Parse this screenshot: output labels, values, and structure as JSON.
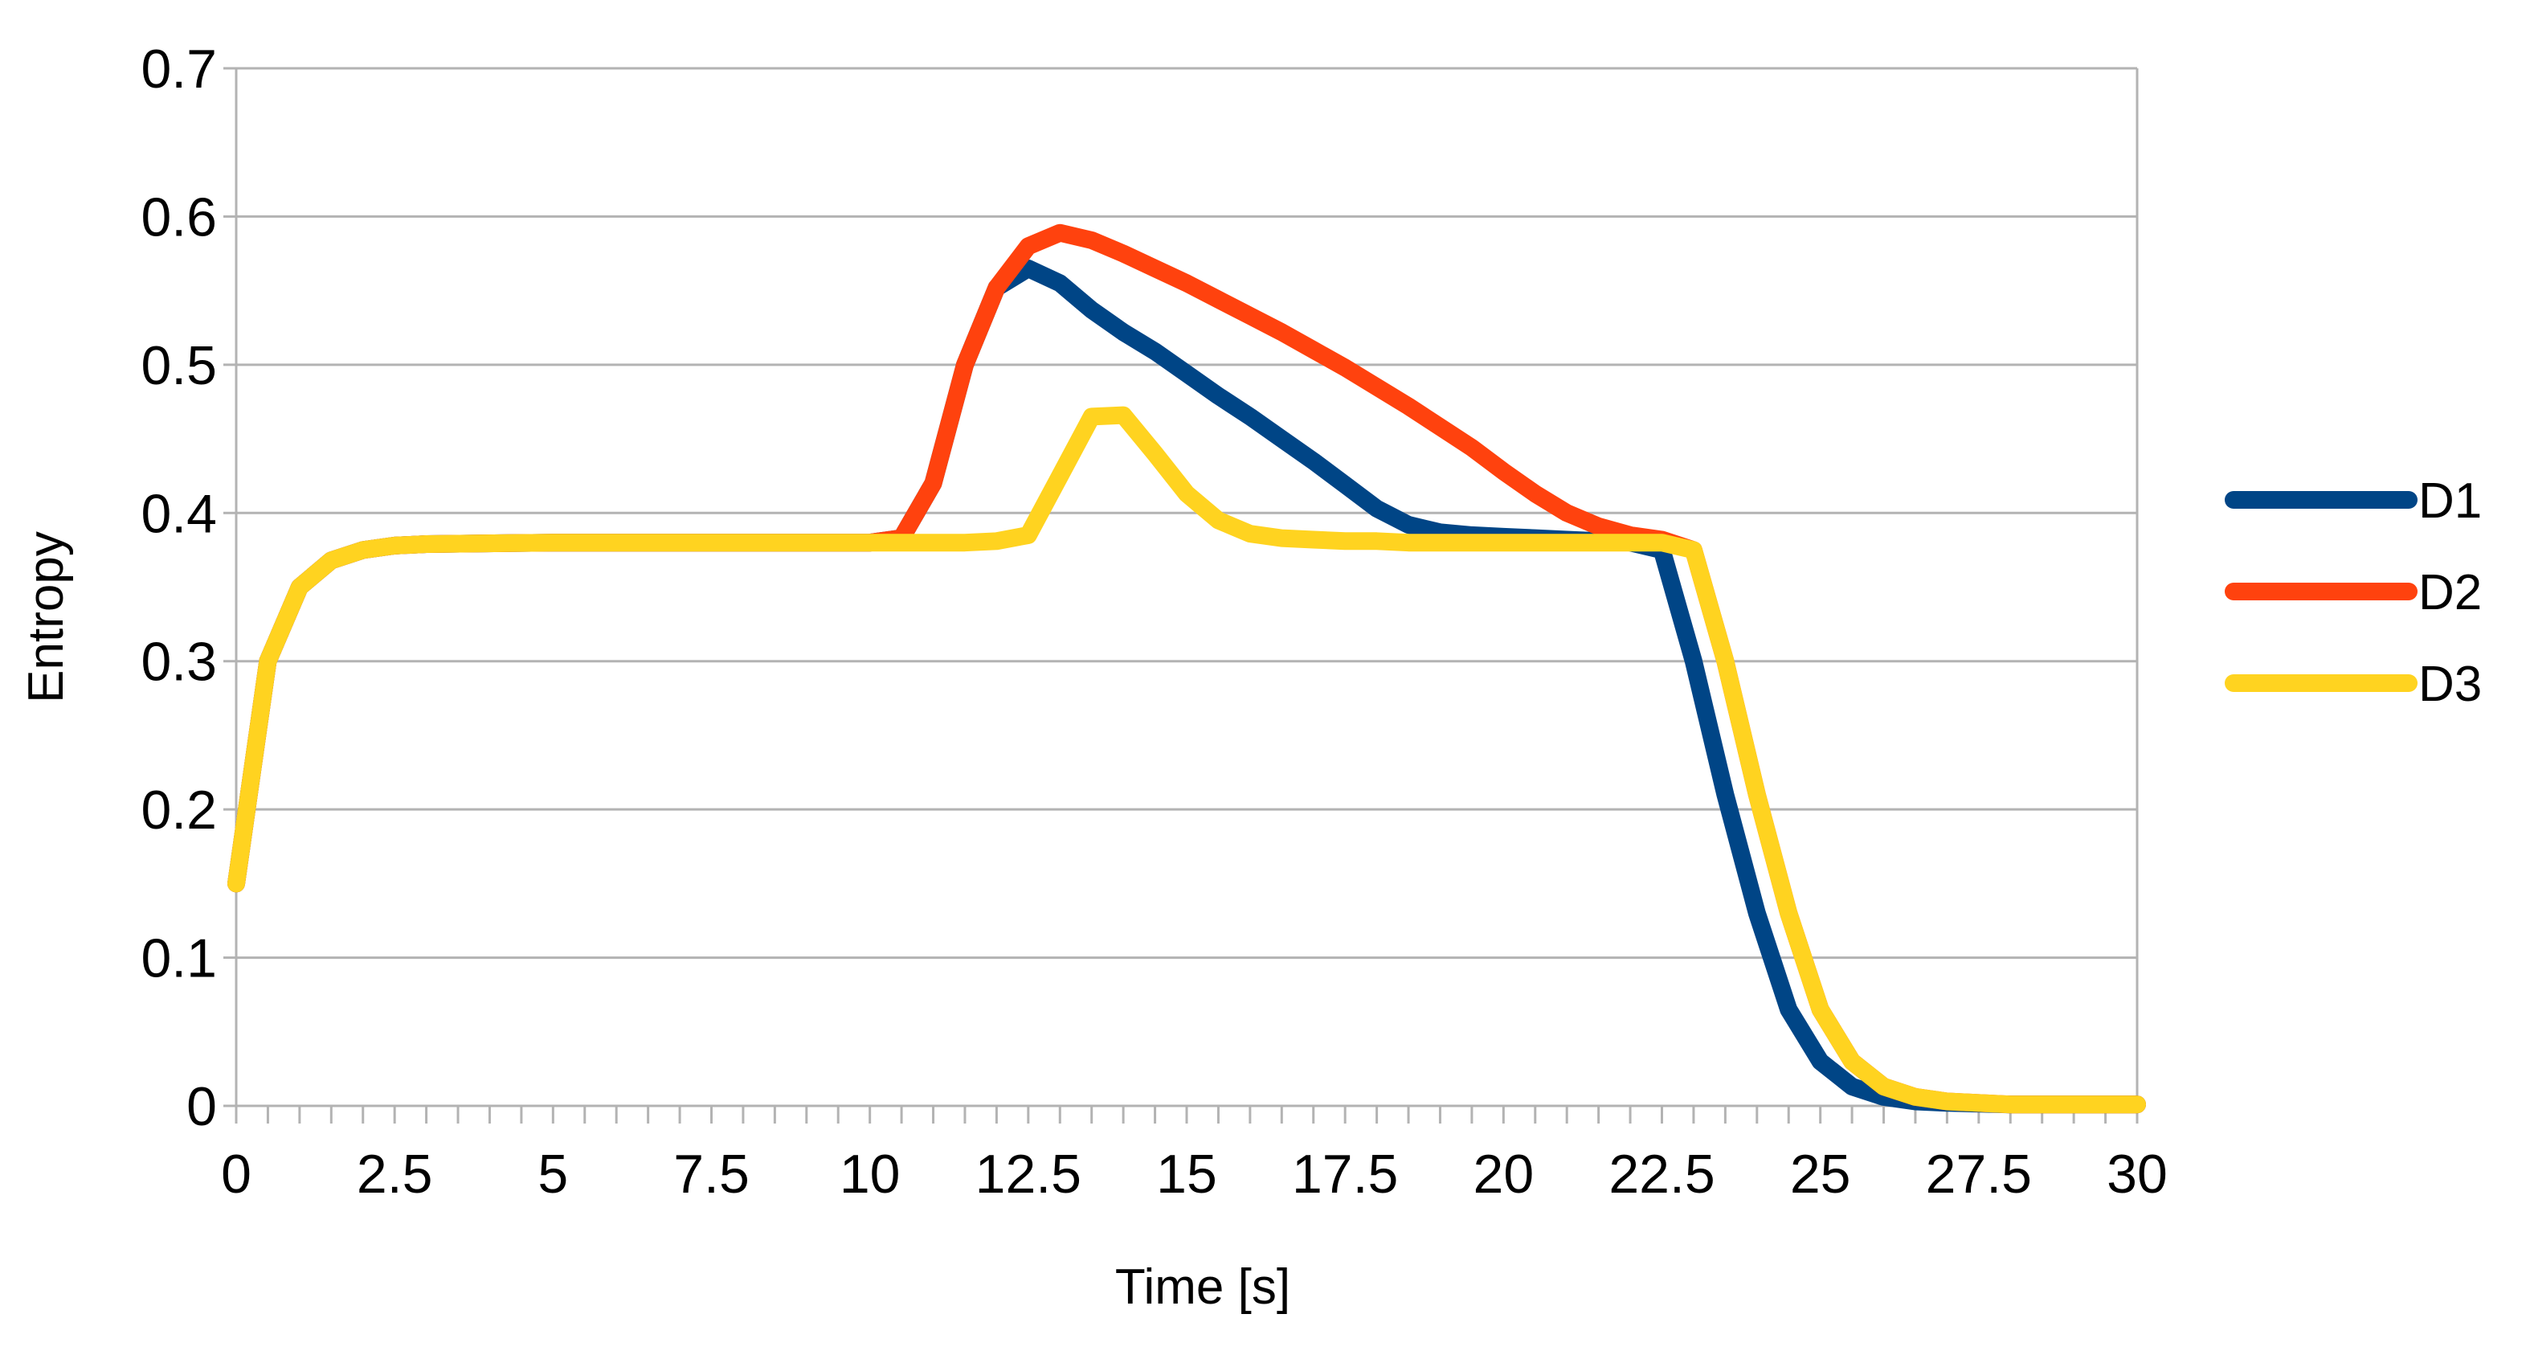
{
  "chart_data": {
    "type": "line",
    "title": "",
    "xlabel": "Time [s]",
    "ylabel": "Entropy",
    "xlim": [
      0,
      30
    ],
    "ylim": [
      0,
      0.7
    ],
    "x_ticks": [
      "0",
      "2.5",
      "5",
      "7.5",
      "10",
      "12.5",
      "15",
      "17.5",
      "20",
      "22.5",
      "25",
      "27.5",
      "30"
    ],
    "y_ticks": [
      "0",
      "0.1",
      "0.2",
      "0.3",
      "0.4",
      "0.5",
      "0.6",
      "0.7"
    ],
    "grid": "horizontal",
    "legend_position": "right",
    "series": [
      {
        "name": "D1",
        "color": "#004586",
        "points": [
          [
            0,
            0.15
          ],
          [
            0.5,
            0.3
          ],
          [
            1,
            0.35
          ],
          [
            1.5,
            0.368
          ],
          [
            2,
            0.375
          ],
          [
            2.5,
            0.378
          ],
          [
            3,
            0.379
          ],
          [
            5,
            0.38
          ],
          [
            7.5,
            0.38
          ],
          [
            10,
            0.38
          ],
          [
            10.5,
            0.383
          ],
          [
            11,
            0.42
          ],
          [
            11.5,
            0.5
          ],
          [
            12,
            0.552
          ],
          [
            12.5,
            0.565
          ],
          [
            13,
            0.555
          ],
          [
            13.5,
            0.537
          ],
          [
            14,
            0.522
          ],
          [
            14.5,
            0.509
          ],
          [
            15,
            0.494
          ],
          [
            15.5,
            0.479
          ],
          [
            16,
            0.465
          ],
          [
            16.5,
            0.45
          ],
          [
            17,
            0.435
          ],
          [
            17.5,
            0.419
          ],
          [
            18,
            0.403
          ],
          [
            18.5,
            0.392
          ],
          [
            19,
            0.387
          ],
          [
            19.5,
            0.385
          ],
          [
            20,
            0.384
          ],
          [
            20.5,
            0.383
          ],
          [
            21,
            0.382
          ],
          [
            21.5,
            0.381
          ],
          [
            22,
            0.38
          ],
          [
            22.5,
            0.375
          ],
          [
            23,
            0.3
          ],
          [
            23.5,
            0.21
          ],
          [
            24,
            0.13
          ],
          [
            24.5,
            0.065
          ],
          [
            25,
            0.03
          ],
          [
            25.5,
            0.013
          ],
          [
            26,
            0.006
          ],
          [
            26.5,
            0.003
          ],
          [
            27,
            0.002
          ],
          [
            28,
            0.001
          ],
          [
            29,
            0.001
          ],
          [
            30,
            0.001
          ]
        ]
      },
      {
        "name": "D2",
        "color": "#ff420e",
        "points": [
          [
            0,
            0.15
          ],
          [
            0.5,
            0.3
          ],
          [
            1,
            0.35
          ],
          [
            1.5,
            0.368
          ],
          [
            2,
            0.375
          ],
          [
            2.5,
            0.378
          ],
          [
            3,
            0.379
          ],
          [
            5,
            0.38
          ],
          [
            7.5,
            0.38
          ],
          [
            10,
            0.38
          ],
          [
            10.5,
            0.383
          ],
          [
            11,
            0.42
          ],
          [
            11.5,
            0.5
          ],
          [
            12,
            0.552
          ],
          [
            12.5,
            0.58
          ],
          [
            13,
            0.589
          ],
          [
            13.5,
            0.584
          ],
          [
            14,
            0.575
          ],
          [
            14.5,
            0.565
          ],
          [
            15,
            0.555
          ],
          [
            15.5,
            0.544
          ],
          [
            16,
            0.533
          ],
          [
            16.5,
            0.522
          ],
          [
            17,
            0.51
          ],
          [
            17.5,
            0.498
          ],
          [
            18,
            0.485
          ],
          [
            18.5,
            0.472
          ],
          [
            19,
            0.458
          ],
          [
            19.5,
            0.444
          ],
          [
            20,
            0.428
          ],
          [
            20.5,
            0.413
          ],
          [
            21,
            0.4
          ],
          [
            21.5,
            0.391
          ],
          [
            22,
            0.385
          ],
          [
            22.5,
            0.382
          ],
          [
            23,
            0.375
          ],
          [
            23.5,
            0.3
          ],
          [
            24,
            0.21
          ],
          [
            24.5,
            0.13
          ],
          [
            25,
            0.065
          ],
          [
            25.5,
            0.03
          ],
          [
            26,
            0.013
          ],
          [
            26.5,
            0.006
          ],
          [
            27,
            0.003
          ],
          [
            28,
            0.001
          ],
          [
            29,
            0.001
          ],
          [
            30,
            0.001
          ]
        ]
      },
      {
        "name": "D3",
        "color": "#ffd320",
        "points": [
          [
            0,
            0.15
          ],
          [
            0.5,
            0.3
          ],
          [
            1,
            0.35
          ],
          [
            1.5,
            0.368
          ],
          [
            2,
            0.375
          ],
          [
            2.5,
            0.378
          ],
          [
            3,
            0.379
          ],
          [
            5,
            0.38
          ],
          [
            7.5,
            0.38
          ],
          [
            10,
            0.38
          ],
          [
            10.5,
            0.38
          ],
          [
            11,
            0.38
          ],
          [
            11.5,
            0.38
          ],
          [
            12,
            0.381
          ],
          [
            12.5,
            0.385
          ],
          [
            13,
            0.425
          ],
          [
            13.5,
            0.465
          ],
          [
            14,
            0.466
          ],
          [
            14.5,
            0.44
          ],
          [
            15,
            0.413
          ],
          [
            15.5,
            0.395
          ],
          [
            16,
            0.386
          ],
          [
            16.5,
            0.383
          ],
          [
            17,
            0.382
          ],
          [
            17.5,
            0.381
          ],
          [
            18,
            0.381
          ],
          [
            18.5,
            0.38
          ],
          [
            19,
            0.38
          ],
          [
            20,
            0.38
          ],
          [
            21,
            0.38
          ],
          [
            22,
            0.38
          ],
          [
            22.5,
            0.38
          ],
          [
            23,
            0.375
          ],
          [
            23.5,
            0.3
          ],
          [
            24,
            0.21
          ],
          [
            24.5,
            0.13
          ],
          [
            25,
            0.065
          ],
          [
            25.5,
            0.03
          ],
          [
            26,
            0.013
          ],
          [
            26.5,
            0.006
          ],
          [
            27,
            0.003
          ],
          [
            28,
            0.001
          ],
          [
            29,
            0.001
          ],
          [
            30,
            0.001
          ]
        ]
      }
    ]
  }
}
